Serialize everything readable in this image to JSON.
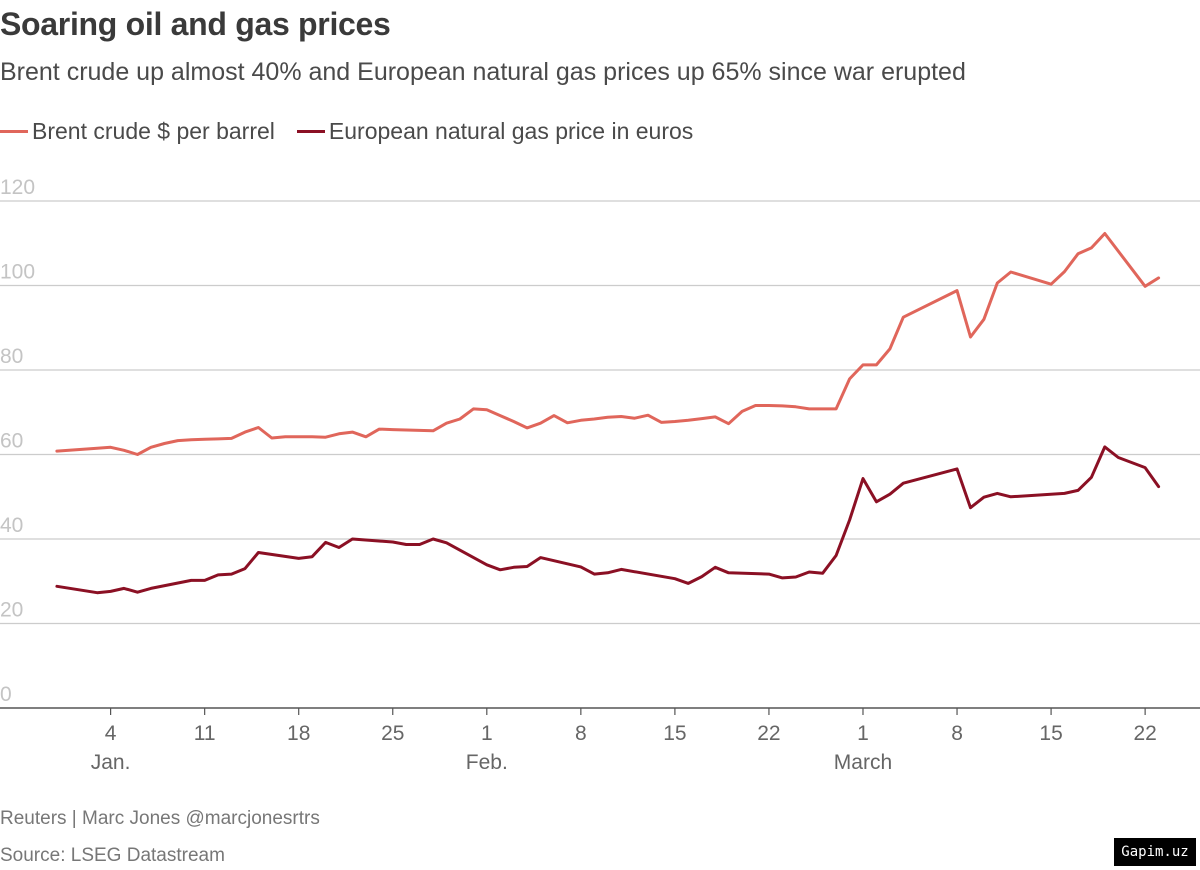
{
  "title": "Soaring oil and gas prices",
  "subtitle": "Brent crude up almost 40% and European natural gas prices up 65% since war erupted",
  "footer": {
    "credit": "Reuters | Marc Jones @marcjonesrtrs",
    "source": "Source: LSEG Datastream"
  },
  "watermark": "Gapim.uz",
  "chart_data": {
    "type": "line",
    "ylim": [
      0,
      120
    ],
    "yticks": [
      0,
      20,
      40,
      60,
      80,
      100,
      120
    ],
    "grid": true,
    "legend_position": "top-left",
    "xticks": [
      {
        "date": "2022-01-04",
        "label": "4",
        "sub": "Jan."
      },
      {
        "date": "2022-01-11",
        "label": "11",
        "sub": ""
      },
      {
        "date": "2022-01-18",
        "label": "18",
        "sub": ""
      },
      {
        "date": "2022-01-25",
        "label": "25",
        "sub": ""
      },
      {
        "date": "2022-02-01",
        "label": "1",
        "sub": "Feb."
      },
      {
        "date": "2022-02-08",
        "label": "8",
        "sub": ""
      },
      {
        "date": "2022-02-15",
        "label": "15",
        "sub": ""
      },
      {
        "date": "2022-02-22",
        "label": "22",
        "sub": ""
      },
      {
        "date": "2022-03-01",
        "label": "1",
        "sub": "March"
      },
      {
        "date": "2022-03-08",
        "label": "8",
        "sub": ""
      },
      {
        "date": "2022-03-15",
        "label": "15",
        "sub": ""
      },
      {
        "date": "2022-03-22",
        "label": "22",
        "sub": ""
      }
    ],
    "xrange": [
      "2021-12-29",
      "2022-03-24"
    ],
    "series": [
      {
        "name": "Brent crude $ per barrel",
        "color": "#e0665b",
        "points": [
          [
            "2021-12-31",
            60.8
          ],
          [
            "2022-01-03",
            61.5
          ],
          [
            "2022-01-04",
            61.7
          ],
          [
            "2022-01-05",
            61.0
          ],
          [
            "2022-01-06",
            60.0
          ],
          [
            "2022-01-07",
            61.7
          ],
          [
            "2022-01-08",
            62.6
          ],
          [
            "2022-01-09",
            63.3
          ],
          [
            "2022-01-10",
            63.5
          ],
          [
            "2022-01-11",
            63.6
          ],
          [
            "2022-01-12",
            63.7
          ],
          [
            "2022-01-13",
            63.8
          ],
          [
            "2022-01-14",
            65.3
          ],
          [
            "2022-01-15",
            66.4
          ],
          [
            "2022-01-16",
            63.9
          ],
          [
            "2022-01-17",
            64.2
          ],
          [
            "2022-01-18",
            64.2
          ],
          [
            "2022-01-19",
            64.2
          ],
          [
            "2022-01-20",
            64.1
          ],
          [
            "2022-01-21",
            64.9
          ],
          [
            "2022-01-22",
            65.3
          ],
          [
            "2022-01-23",
            64.2
          ],
          [
            "2022-01-24",
            66.0
          ],
          [
            "2022-01-25",
            65.9
          ],
          [
            "2022-01-26",
            65.8
          ],
          [
            "2022-01-27",
            65.7
          ],
          [
            "2022-01-28",
            65.6
          ],
          [
            "2022-01-29",
            67.4
          ],
          [
            "2022-01-30",
            68.4
          ],
          [
            "2022-01-31",
            70.8
          ],
          [
            "2022-02-01",
            70.6
          ],
          [
            "2022-02-02",
            69.2
          ],
          [
            "2022-02-03",
            67.8
          ],
          [
            "2022-02-04",
            66.3
          ],
          [
            "2022-02-05",
            67.4
          ],
          [
            "2022-02-06",
            69.2
          ],
          [
            "2022-02-07",
            67.5
          ],
          [
            "2022-02-08",
            68.1
          ],
          [
            "2022-02-09",
            68.4
          ],
          [
            "2022-02-10",
            68.8
          ],
          [
            "2022-02-11",
            69.0
          ],
          [
            "2022-02-12",
            68.6
          ],
          [
            "2022-02-13",
            69.3
          ],
          [
            "2022-02-14",
            67.6
          ],
          [
            "2022-02-15",
            67.8
          ],
          [
            "2022-02-16",
            68.1
          ],
          [
            "2022-02-17",
            68.5
          ],
          [
            "2022-02-18",
            68.9
          ],
          [
            "2022-02-19",
            67.3
          ],
          [
            "2022-02-20",
            70.2
          ],
          [
            "2022-02-21",
            71.6
          ],
          [
            "2022-02-22",
            71.6
          ],
          [
            "2022-02-23",
            71.5
          ],
          [
            "2022-02-24",
            71.3
          ],
          [
            "2022-02-25",
            70.8
          ],
          [
            "2022-02-26",
            70.8
          ],
          [
            "2022-02-27",
            70.8
          ],
          [
            "2022-02-28",
            77.9
          ],
          [
            "2022-03-01",
            81.2
          ],
          [
            "2022-03-02",
            81.2
          ],
          [
            "2022-03-03",
            85.0
          ],
          [
            "2022-03-04",
            92.5
          ],
          [
            "2022-03-08",
            98.8
          ],
          [
            "2022-03-09",
            87.8
          ],
          [
            "2022-03-10",
            92.0
          ],
          [
            "2022-03-11",
            100.6
          ],
          [
            "2022-03-12",
            103.2
          ],
          [
            "2022-03-15",
            100.3
          ],
          [
            "2022-03-16",
            103.3
          ],
          [
            "2022-03-17",
            107.5
          ],
          [
            "2022-03-18",
            108.9
          ],
          [
            "2022-03-19",
            112.3
          ],
          [
            "2022-03-22",
            99.8
          ],
          [
            "2022-03-23",
            101.8
          ]
        ]
      },
      {
        "name": "European natural gas price in euros",
        "color": "#8b1024",
        "points": [
          [
            "2021-12-31",
            28.8
          ],
          [
            "2022-01-03",
            27.3
          ],
          [
            "2022-01-04",
            27.6
          ],
          [
            "2022-01-05",
            28.3
          ],
          [
            "2022-01-06",
            27.4
          ],
          [
            "2022-01-07",
            28.3
          ],
          [
            "2022-01-10",
            30.2
          ],
          [
            "2022-01-11",
            30.2
          ],
          [
            "2022-01-12",
            31.5
          ],
          [
            "2022-01-13",
            31.7
          ],
          [
            "2022-01-14",
            33.0
          ],
          [
            "2022-01-15",
            36.8
          ],
          [
            "2022-01-18",
            35.4
          ],
          [
            "2022-01-19",
            35.8
          ],
          [
            "2022-01-20",
            39.2
          ],
          [
            "2022-01-21",
            38.0
          ],
          [
            "2022-01-22",
            40.0
          ],
          [
            "2022-01-25",
            39.3
          ],
          [
            "2022-01-26",
            38.7
          ],
          [
            "2022-01-27",
            38.7
          ],
          [
            "2022-01-28",
            40.0
          ],
          [
            "2022-01-29",
            39.1
          ],
          [
            "2022-02-01",
            33.9
          ],
          [
            "2022-02-02",
            32.7
          ],
          [
            "2022-02-03",
            33.3
          ],
          [
            "2022-02-04",
            33.5
          ],
          [
            "2022-02-05",
            35.6
          ],
          [
            "2022-02-08",
            33.4
          ],
          [
            "2022-02-09",
            31.7
          ],
          [
            "2022-02-10",
            32.0
          ],
          [
            "2022-02-11",
            32.8
          ],
          [
            "2022-02-15",
            30.6
          ],
          [
            "2022-02-16",
            29.5
          ],
          [
            "2022-02-17",
            31.1
          ],
          [
            "2022-02-18",
            33.3
          ],
          [
            "2022-02-19",
            32.0
          ],
          [
            "2022-02-22",
            31.7
          ],
          [
            "2022-02-23",
            30.8
          ],
          [
            "2022-02-24",
            31.0
          ],
          [
            "2022-02-25",
            32.2
          ],
          [
            "2022-02-26",
            31.9
          ],
          [
            "2022-02-27",
            36.1
          ],
          [
            "2022-02-28",
            44.5
          ],
          [
            "2022-03-01",
            54.3
          ],
          [
            "2022-03-02",
            48.8
          ],
          [
            "2022-03-03",
            50.6
          ],
          [
            "2022-03-04",
            53.2
          ],
          [
            "2022-03-08",
            56.6
          ],
          [
            "2022-03-09",
            47.4
          ],
          [
            "2022-03-10",
            49.9
          ],
          [
            "2022-03-11",
            50.8
          ],
          [
            "2022-03-12",
            50.0
          ],
          [
            "2022-03-16",
            50.8
          ],
          [
            "2022-03-17",
            51.5
          ],
          [
            "2022-03-18",
            54.6
          ],
          [
            "2022-03-19",
            61.8
          ],
          [
            "2022-03-20",
            59.3
          ],
          [
            "2022-03-22",
            56.9
          ],
          [
            "2022-03-23",
            52.4
          ]
        ]
      }
    ]
  }
}
